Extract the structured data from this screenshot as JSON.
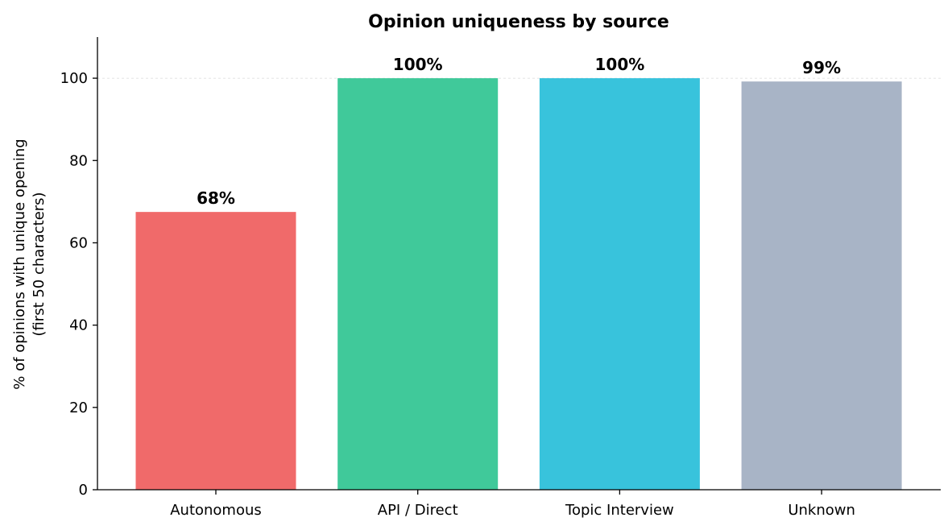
{
  "chart_data": {
    "type": "bar",
    "title": "Opinion uniqueness by source",
    "xlabel": "",
    "ylabel": [
      "% of opinions with unique opening",
      "(first 50 characters)"
    ],
    "categories": [
      "Autonomous",
      "API / Direct",
      "Topic Interview",
      "Unknown"
    ],
    "values": [
      67.5,
      100,
      100,
      99.2
    ],
    "data_labels": [
      "68%",
      "100%",
      "100%",
      "99%"
    ],
    "colors": [
      "#f06a6a",
      "#40c99a",
      "#38c3dc",
      "#a8b4c6"
    ],
    "ylim": [
      0,
      110
    ],
    "yticks": [
      0,
      20,
      40,
      60,
      80,
      100
    ],
    "grid": "horizontal line at 100 only",
    "legend": "none"
  }
}
